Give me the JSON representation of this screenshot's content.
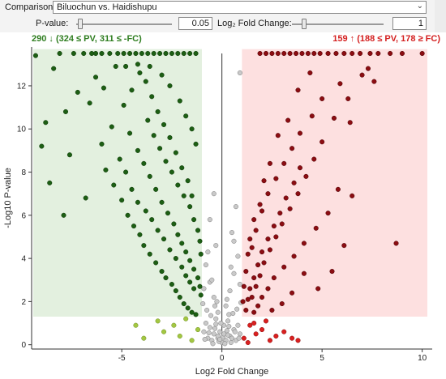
{
  "controls": {
    "comparison_label": "Comparison:",
    "comparison_value": "Biluochun vs. Haidishupu",
    "pvalue_label": "P-value:",
    "pvalue_value": "0.05",
    "fc_label": "Log₂ Fold Change:",
    "fc_value": "1"
  },
  "summary": {
    "down_text": "290 ↓ (324 ≤ PV, 311 ≤ -FC)",
    "up_text": "159 ↑ (188 ≤ PV, 178 ≥ FC)"
  },
  "colors": {
    "down_strong": "#1d5e14",
    "down_weak": "#a3c742",
    "up_strong": "#8b0d12",
    "up_weak": "#d92020",
    "not_sig": "#c9c9c9",
    "down_region": "#e3f0df",
    "up_region": "#fde0e0"
  },
  "chart_data": {
    "type": "scatter",
    "title": "",
    "xlabel": "Log2 Fold Change",
    "ylabel": "-Log10 P-value",
    "xlim": [
      -9.5,
      10.5
    ],
    "ylim": [
      -0.2,
      13.8
    ],
    "x_ticks": [
      -5,
      0,
      5,
      10
    ],
    "y_ticks": [
      0,
      2,
      4,
      6,
      8,
      10,
      12
    ],
    "thresholds": {
      "log2fc": 1,
      "neglog10p": 1.3
    },
    "grid": false,
    "series": [
      {
        "points": [
          [
            -9.3,
            13.4
          ],
          [
            -8.1,
            13.5
          ],
          [
            -7.4,
            13.5
          ],
          [
            -6.9,
            13.5
          ],
          [
            -6.5,
            13.5
          ],
          [
            -6.3,
            13.5
          ],
          [
            -6.0,
            13.5
          ],
          [
            -5.6,
            13.5
          ],
          [
            -5.2,
            13.5
          ],
          [
            -4.9,
            13.5
          ],
          [
            -4.6,
            13.5
          ],
          [
            -4.3,
            13.5
          ],
          [
            -4.0,
            13.5
          ],
          [
            -3.7,
            13.5
          ],
          [
            -3.4,
            13.5
          ],
          [
            -3.1,
            13.5
          ],
          [
            -2.8,
            13.5
          ],
          [
            -2.5,
            13.5
          ],
          [
            -2.2,
            13.5
          ],
          [
            -1.9,
            13.5
          ],
          [
            -1.6,
            13.5
          ],
          [
            -1.3,
            13.5
          ],
          [
            -8.4,
            12.8
          ],
          [
            -7.2,
            11.7
          ],
          [
            -6.6,
            11.2
          ],
          [
            -8.8,
            10.3
          ],
          [
            -7.8,
            10.8
          ],
          [
            -9.0,
            9.2
          ],
          [
            -7.6,
            8.8
          ],
          [
            -8.6,
            7.5
          ],
          [
            -7.9,
            6.0
          ],
          [
            -6.8,
            6.8
          ],
          [
            -6.0,
            9.3
          ],
          [
            -5.5,
            10.1
          ],
          [
            -4.9,
            11.1
          ],
          [
            -4.5,
            11.8
          ],
          [
            -4.1,
            12.6
          ],
          [
            -3.8,
            12.2
          ],
          [
            -3.5,
            11.5
          ],
          [
            -3.2,
            10.8
          ],
          [
            -2.9,
            10.2
          ],
          [
            -2.6,
            9.6
          ],
          [
            -2.3,
            8.9
          ],
          [
            -2.0,
            8.2
          ],
          [
            -1.7,
            7.6
          ],
          [
            -1.5,
            6.9
          ],
          [
            -5.8,
            8.1
          ],
          [
            -5.4,
            7.4
          ],
          [
            -5.0,
            6.7
          ],
          [
            -4.7,
            6.0
          ],
          [
            -4.4,
            5.5
          ],
          [
            -4.1,
            5.1
          ],
          [
            -3.9,
            4.6
          ],
          [
            -3.6,
            4.2
          ],
          [
            -3.3,
            3.8
          ],
          [
            -3.0,
            3.4
          ],
          [
            -2.8,
            3.1
          ],
          [
            -2.5,
            2.8
          ],
          [
            -2.3,
            2.5
          ],
          [
            -2.1,
            2.2
          ],
          [
            -1.9,
            1.9
          ],
          [
            -1.7,
            1.7
          ],
          [
            -1.5,
            1.5
          ],
          [
            -1.3,
            1.4
          ],
          [
            -4.6,
            9.8
          ],
          [
            -4.2,
            9.0
          ],
          [
            -3.9,
            8.4
          ],
          [
            -3.6,
            7.8
          ],
          [
            -3.3,
            7.2
          ],
          [
            -3.0,
            6.6
          ],
          [
            -2.7,
            6.1
          ],
          [
            -2.4,
            5.6
          ],
          [
            -2.2,
            5.1
          ],
          [
            -2.0,
            4.7
          ],
          [
            -1.8,
            4.3
          ],
          [
            -1.6,
            3.9
          ],
          [
            -1.4,
            3.5
          ],
          [
            -1.2,
            3.1
          ],
          [
            -1.1,
            2.7
          ],
          [
            -1.05,
            2.3
          ],
          [
            -3.7,
            10.4
          ],
          [
            -3.4,
            9.7
          ],
          [
            -3.1,
            9.1
          ],
          [
            -2.8,
            8.5
          ],
          [
            -2.5,
            8.0
          ],
          [
            -2.2,
            7.4
          ],
          [
            -1.9,
            6.9
          ],
          [
            -1.6,
            6.4
          ],
          [
            -1.4,
            5.8
          ],
          [
            -1.2,
            5.3
          ],
          [
            -1.1,
            4.8
          ],
          [
            -1.05,
            4.2
          ],
          [
            -6.3,
            12.4
          ],
          [
            -5.9,
            11.9
          ],
          [
            -5.3,
            12.9
          ],
          [
            -4.8,
            12.9
          ],
          [
            -4.2,
            13.0
          ],
          [
            -3.6,
            12.9
          ],
          [
            -3.0,
            12.5
          ],
          [
            -2.6,
            12.0
          ],
          [
            -2.1,
            11.3
          ],
          [
            -1.8,
            10.6
          ],
          [
            -1.5,
            10.0
          ],
          [
            -1.3,
            9.3
          ],
          [
            -5.1,
            8.6
          ],
          [
            -4.8,
            8.0
          ],
          [
            -4.5,
            7.2
          ],
          [
            -4.2,
            6.6
          ],
          [
            -3.8,
            6.2
          ],
          [
            -3.5,
            5.8
          ],
          [
            -3.2,
            5.3
          ],
          [
            -2.9,
            4.9
          ],
          [
            -2.6,
            4.4
          ],
          [
            -2.3,
            4.0
          ],
          [
            -2.0,
            3.6
          ],
          [
            -1.8,
            3.2
          ],
          [
            -1.6,
            2.9
          ],
          [
            -1.4,
            2.6
          ]
        ]
      },
      {
        "points": [
          [
            -4.3,
            0.9
          ],
          [
            -3.9,
            0.3
          ],
          [
            -3.2,
            1.1
          ],
          [
            -2.9,
            0.6
          ],
          [
            -2.4,
            0.9
          ],
          [
            -2.1,
            0.4
          ],
          [
            -1.8,
            1.2
          ],
          [
            -1.5,
            0.2
          ],
          [
            -1.2,
            0.7
          ]
        ]
      },
      {
        "points": [
          [
            10.0,
            13.5
          ],
          [
            9.0,
            13.5
          ],
          [
            8.4,
            13.5
          ],
          [
            7.8,
            13.5
          ],
          [
            7.4,
            13.5
          ],
          [
            6.9,
            13.5
          ],
          [
            6.5,
            13.5
          ],
          [
            6.1,
            13.5
          ],
          [
            5.7,
            13.5
          ],
          [
            5.3,
            13.5
          ],
          [
            4.9,
            13.5
          ],
          [
            4.6,
            13.5
          ],
          [
            4.3,
            13.5
          ],
          [
            4.0,
            13.5
          ],
          [
            3.7,
            13.5
          ],
          [
            3.4,
            13.5
          ],
          [
            3.1,
            13.5
          ],
          [
            2.8,
            13.5
          ],
          [
            2.5,
            13.5
          ],
          [
            2.2,
            13.5
          ],
          [
            1.9,
            13.5
          ],
          [
            7.0,
            12.5
          ],
          [
            7.3,
            12.8
          ],
          [
            7.6,
            12.2
          ],
          [
            6.3,
            11.4
          ],
          [
            6.4,
            10.3
          ],
          [
            5.6,
            10.5
          ],
          [
            4.4,
            12.6
          ],
          [
            3.8,
            11.8
          ],
          [
            3.3,
            10.4
          ],
          [
            2.8,
            9.7
          ],
          [
            2.4,
            8.4
          ],
          [
            2.1,
            7.6
          ],
          [
            1.9,
            6.5
          ],
          [
            1.6,
            5.8
          ],
          [
            1.4,
            4.9
          ],
          [
            1.3,
            4.2
          ],
          [
            1.2,
            3.4
          ],
          [
            1.1,
            2.7
          ],
          [
            1.05,
            2.0
          ],
          [
            3.9,
            8.2
          ],
          [
            3.6,
            7.5
          ],
          [
            3.2,
            6.8
          ],
          [
            2.9,
            6.1
          ],
          [
            2.6,
            5.5
          ],
          [
            2.3,
            4.9
          ],
          [
            2.0,
            4.3
          ],
          [
            1.8,
            3.7
          ],
          [
            1.6,
            3.1
          ],
          [
            1.4,
            2.6
          ],
          [
            1.3,
            2.1
          ],
          [
            1.2,
            1.6
          ],
          [
            5.0,
            9.4
          ],
          [
            4.6,
            8.6
          ],
          [
            4.2,
            7.8
          ],
          [
            3.8,
            7.0
          ],
          [
            3.4,
            6.3
          ],
          [
            3.0,
            5.6
          ],
          [
            2.7,
            5.0
          ],
          [
            2.4,
            4.4
          ],
          [
            2.1,
            3.8
          ],
          [
            1.9,
            3.2
          ],
          [
            1.7,
            2.7
          ],
          [
            1.5,
            2.2
          ],
          [
            6.5,
            6.9
          ],
          [
            5.8,
            7.2
          ],
          [
            5.3,
            6.1
          ],
          [
            4.7,
            5.4
          ],
          [
            4.1,
            4.7
          ],
          [
            3.6,
            4.1
          ],
          [
            3.1,
            3.6
          ],
          [
            2.6,
            3.1
          ],
          [
            2.3,
            2.6
          ],
          [
            2.0,
            2.2
          ],
          [
            1.8,
            1.8
          ],
          [
            1.6,
            1.5
          ],
          [
            8.7,
            4.7
          ],
          [
            6.1,
            4.6
          ],
          [
            5.5,
            3.4
          ],
          [
            4.8,
            2.6
          ],
          [
            4.1,
            3.3
          ],
          [
            3.5,
            2.4
          ],
          [
            3.0,
            1.9
          ],
          [
            2.5,
            1.6
          ],
          [
            5.9,
            12.1
          ],
          [
            5.0,
            11.4
          ],
          [
            4.5,
            10.6
          ],
          [
            3.9,
            9.8
          ],
          [
            3.5,
            9.1
          ],
          [
            3.1,
            8.4
          ],
          [
            2.7,
            7.7
          ],
          [
            2.3,
            7.0
          ],
          [
            2.0,
            6.2
          ],
          [
            1.7,
            5.3
          ],
          [
            1.5,
            4.5
          ]
        ]
      },
      {
        "points": [
          [
            1.1,
            0.3
          ],
          [
            1.4,
            0.9
          ],
          [
            1.7,
            0.5
          ],
          [
            2.0,
            0.7
          ],
          [
            2.4,
            0.2
          ],
          [
            2.7,
            0.4
          ],
          [
            3.1,
            0.6
          ],
          [
            3.5,
            0.3
          ],
          [
            2.2,
            1.1
          ],
          [
            1.3,
            0.1
          ],
          [
            1.6,
            1.0
          ],
          [
            3.8,
            0.2
          ]
        ]
      },
      {
        "points": [
          [
            0.0,
            0.1
          ],
          [
            -0.2,
            0.3
          ],
          [
            0.2,
            0.2
          ],
          [
            -0.4,
            0.5
          ],
          [
            0.4,
            0.4
          ],
          [
            -0.6,
            0.8
          ],
          [
            0.6,
            0.7
          ],
          [
            -0.8,
            1.0
          ],
          [
            0.8,
            0.9
          ],
          [
            -0.3,
            1.2
          ],
          [
            0.3,
            1.1
          ],
          [
            -0.5,
            0.2
          ],
          [
            0.5,
            0.3
          ],
          [
            -0.1,
            0.6
          ],
          [
            0.1,
            0.9
          ],
          [
            -0.7,
            0.3
          ],
          [
            0.7,
            0.2
          ],
          [
            -0.9,
            0.6
          ],
          [
            0.9,
            0.5
          ],
          [
            -0.2,
            1.5
          ],
          [
            0.2,
            1.8
          ],
          [
            -0.4,
            2.2
          ],
          [
            0.4,
            2.5
          ],
          [
            -0.6,
            2.9
          ],
          [
            0.6,
            3.3
          ],
          [
            -0.8,
            3.7
          ],
          [
            0.8,
            4.1
          ],
          [
            -0.3,
            4.6
          ],
          [
            0.5,
            5.2
          ],
          [
            -0.6,
            5.8
          ],
          [
            0.7,
            6.4
          ],
          [
            -0.4,
            7.0
          ],
          [
            0.9,
            12.6
          ],
          [
            -0.2,
            0.4
          ],
          [
            0.25,
            0.65
          ],
          [
            -0.55,
            1.35
          ],
          [
            0.55,
            1.45
          ],
          [
            -0.15,
            0.15
          ],
          [
            0.15,
            0.05
          ],
          [
            -0.35,
            0.75
          ],
          [
            0.35,
            0.85
          ],
          [
            -0.75,
            1.6
          ],
          [
            0.75,
            1.65
          ],
          [
            -0.95,
            1.9
          ],
          [
            0.95,
            1.95
          ],
          [
            0.05,
            0.35
          ],
          [
            -0.05,
            1.0
          ],
          [
            -0.45,
            0.05
          ],
          [
            0.45,
            0.1
          ],
          [
            -0.65,
            0.55
          ],
          [
            0.65,
            0.6
          ],
          [
            -0.85,
            0.25
          ],
          [
            0.85,
            0.3
          ],
          [
            -0.25,
            2.0
          ],
          [
            0.25,
            2.1
          ],
          [
            -0.5,
            3.0
          ],
          [
            0.45,
            3.6
          ],
          [
            -0.7,
            4.3
          ],
          [
            0.6,
            4.8
          ],
          [
            -0.35,
            1.8
          ],
          [
            0.35,
            1.4
          ],
          [
            -0.9,
            2.6
          ],
          [
            0.9,
            2.8
          ],
          [
            0.1,
            0.5
          ],
          [
            -0.1,
            0.25
          ],
          [
            0.3,
            0.45
          ],
          [
            -0.3,
            0.95
          ]
        ]
      }
    ]
  }
}
